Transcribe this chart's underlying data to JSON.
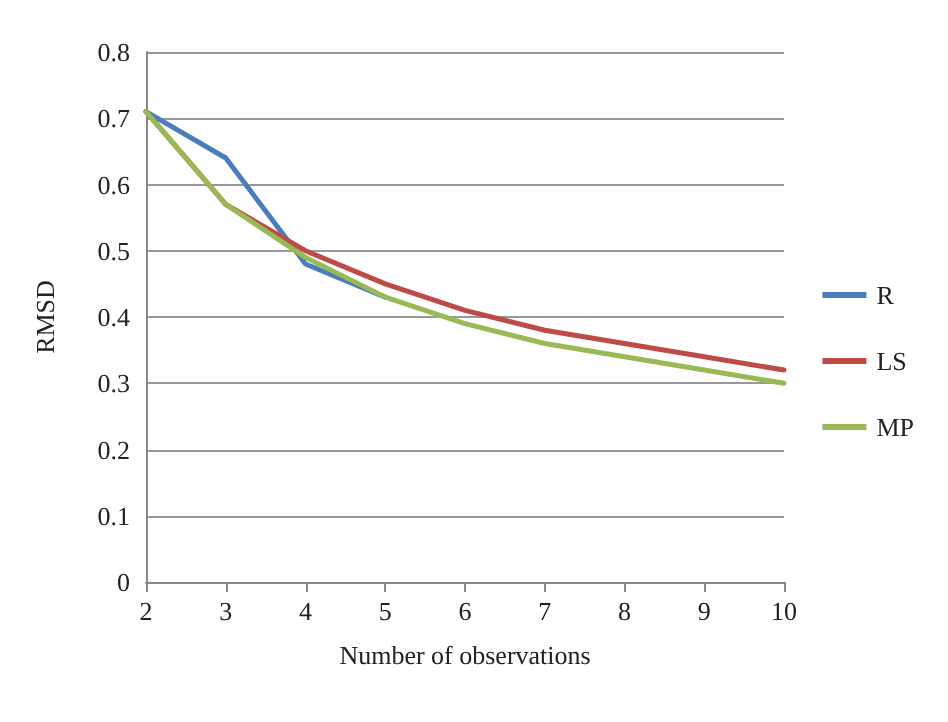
{
  "chart_data": {
    "type": "line",
    "xlabel": "Number of observations",
    "ylabel": "RMSD",
    "x": [
      2,
      3,
      4,
      5,
      6,
      7,
      8,
      9,
      10
    ],
    "series": [
      {
        "name": "R",
        "color": "#4a7ebb",
        "values": [
          0.71,
          0.64,
          0.48,
          0.43,
          null,
          null,
          null,
          null,
          null
        ]
      },
      {
        "name": "LS",
        "color": "#be4b48",
        "values": [
          0.71,
          0.57,
          0.5,
          0.45,
          0.41,
          0.38,
          0.36,
          0.34,
          0.32
        ]
      },
      {
        "name": "MP",
        "color": "#98b954",
        "values": [
          0.71,
          0.57,
          0.49,
          0.43,
          0.39,
          0.36,
          0.34,
          0.32,
          0.3
        ]
      }
    ],
    "xlim": [
      2,
      10
    ],
    "xticks": [
      2,
      3,
      4,
      5,
      6,
      7,
      8,
      9,
      10
    ],
    "ylim": [
      0,
      0.8
    ],
    "yticks": [
      0,
      0.1,
      0.2,
      0.3,
      0.4,
      0.5,
      0.6,
      0.7,
      0.8
    ],
    "grid": "y",
    "legend": "right",
    "marker": "none",
    "line_style": "solid"
  }
}
